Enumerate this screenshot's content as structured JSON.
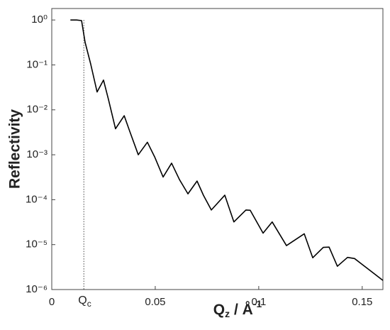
{
  "chart_data": {
    "type": "line",
    "ylabel": "Reflectivity",
    "xlabel": {
      "base": "Q",
      "sub": "z",
      "rest": " / Å",
      "sup": "-1"
    },
    "annotation": {
      "base": "Q",
      "sub": "c",
      "x": 0.0155
    },
    "log_y": true,
    "color": "#000000",
    "xlim": [
      0,
      0.16
    ],
    "ylim": [
      1e-06,
      1.8
    ],
    "xticks": [
      0,
      0.05,
      0.1,
      0.15
    ],
    "yticks": [
      {
        "value": 1,
        "label": "10⁰"
      },
      {
        "value": 0.1,
        "label": "10⁻¹"
      },
      {
        "value": 0.01,
        "label": "10⁻²"
      },
      {
        "value": 0.001,
        "label": "10⁻³"
      },
      {
        "value": 0.0001,
        "label": "10⁻⁴"
      },
      {
        "value": 1e-05,
        "label": "10⁻⁵"
      },
      {
        "value": 1e-06,
        "label": "10⁻⁶"
      }
    ],
    "x": [
      0.009,
      0.012,
      0.0144,
      0.0161,
      0.0188,
      0.0219,
      0.025,
      0.0274,
      0.0308,
      0.035,
      0.0377,
      0.0418,
      0.0462,
      0.0497,
      0.0538,
      0.0579,
      0.0617,
      0.0658,
      0.0702,
      0.0733,
      0.0771,
      0.0836,
      0.088,
      0.0938,
      0.0959,
      0.1021,
      0.1065,
      0.1134,
      0.122,
      0.1261,
      0.1312,
      0.134,
      0.138,
      0.1429,
      0.1463,
      0.16
    ],
    "values": [
      1,
      1,
      0.97,
      0.32,
      0.105,
      0.025,
      0.046,
      0.017,
      0.0038,
      0.0074,
      0.0033,
      0.001,
      0.0019,
      0.0009,
      0.00032,
      0.00065,
      0.00028,
      0.000135,
      0.00026,
      0.000125,
      5.9e-05,
      0.000126,
      3.2e-05,
      5.9e-05,
      5.8e-05,
      1.8e-05,
      3.2e-05,
      9.5e-06,
      1.74e-05,
      5.1e-06,
      8.7e-06,
      8.8e-06,
      3.3e-06,
      5.2e-06,
      4.9e-06,
      1.6e-06
    ]
  }
}
